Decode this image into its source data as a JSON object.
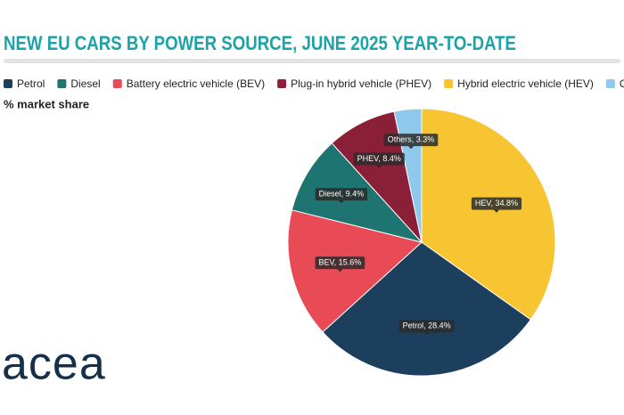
{
  "chart_data": {
    "type": "pie",
    "title": "NEW EU CARS BY POWER SOURCE, JUNE 2025 YEAR-TO-DATE",
    "subtitle": "% market share",
    "legend": [
      {
        "name": "Petrol",
        "color": "#1c3f5e"
      },
      {
        "name": "Diesel",
        "color": "#1e7470"
      },
      {
        "name": "Battery electric vehicle (BEV)",
        "color": "#e84a56"
      },
      {
        "name": "Plug-in hybrid vehicle (PHEV)",
        "color": "#8a1f38"
      },
      {
        "name": "Hybrid electric vehicle (HEV)",
        "color": "#f7c531"
      },
      {
        "name": "Others",
        "color": "#8ec8ea"
      }
    ],
    "values": [
      34.8,
      28.4,
      15.6,
      9.4,
      8.4,
      3.3
    ],
    "value_labels": [
      "HEV, 34.8%",
      "Petrol, 28.4%",
      "BEV, 15.6%",
      "Diesel, 9.4%",
      "PHEV, 8.4%",
      "Others, 3.3%"
    ],
    "colors": [
      "#f7c531",
      "#1c3f5e",
      "#e84a56",
      "#1e7470",
      "#8a1f38",
      "#8ec8ea"
    ]
  },
  "logo": "acea"
}
